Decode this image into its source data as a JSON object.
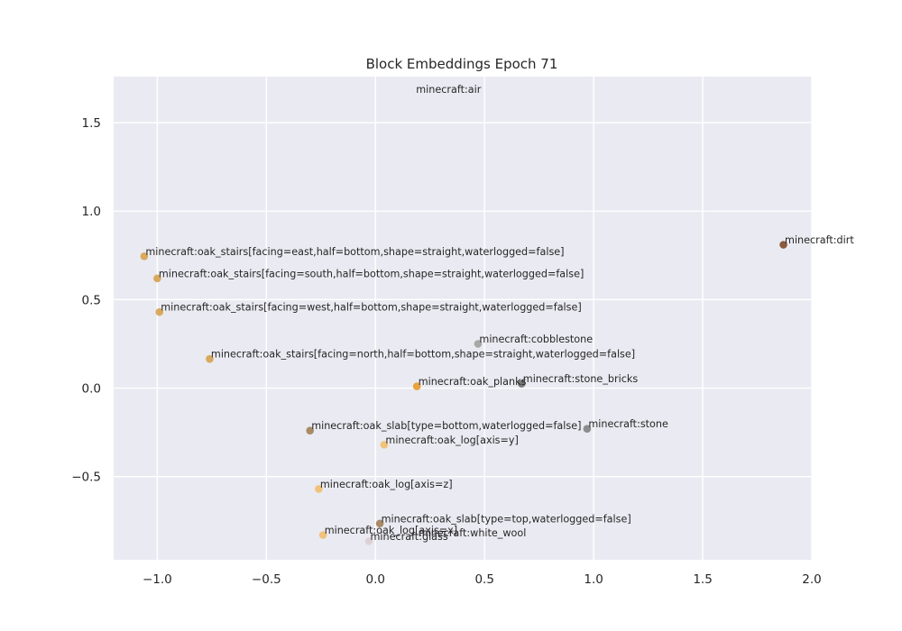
{
  "chart_data": {
    "type": "scatter",
    "title": "Block Embeddings Epoch 71",
    "xlabel": "",
    "ylabel": "",
    "xlim": [
      -1.2,
      2.0
    ],
    "ylim": [
      -0.97,
      1.76
    ],
    "xticks": [
      -1.0,
      -0.5,
      0.0,
      0.5,
      1.0,
      1.5,
      2.0
    ],
    "xtick_labels": [
      "−1.0",
      "−0.5",
      "0.0",
      "0.5",
      "1.0",
      "1.5",
      "2.0"
    ],
    "yticks": [
      -0.5,
      0.0,
      0.5,
      1.0,
      1.5
    ],
    "ytick_labels": [
      "−0.5",
      "0.0",
      "0.5",
      "1.0",
      "1.5"
    ],
    "grid": true,
    "background": "#eaeaf2",
    "points": [
      {
        "label": "minecraft:air",
        "x": 0.18,
        "y": 1.66,
        "color": null
      },
      {
        "label": "minecraft:dirt",
        "x": 1.87,
        "y": 0.81,
        "color": "#8b5a3c"
      },
      {
        "label": "minecraft:oak_stairs[facing=east,half=bottom,shape=straight,waterlogged=false]",
        "x": -1.06,
        "y": 0.745,
        "color": "#d9a95e"
      },
      {
        "label": "minecraft:oak_stairs[facing=south,half=bottom,shape=straight,waterlogged=false]",
        "x": -1.0,
        "y": 0.62,
        "color": "#d9a95e"
      },
      {
        "label": "minecraft:oak_stairs[facing=west,half=bottom,shape=straight,waterlogged=false]",
        "x": -0.99,
        "y": 0.43,
        "color": "#d9a95e"
      },
      {
        "label": "minecraft:cobblestone",
        "x": 0.47,
        "y": 0.25,
        "color": "#a8a8a8"
      },
      {
        "label": "minecraft:oak_stairs[facing=north,half=bottom,shape=straight,waterlogged=false]",
        "x": -0.76,
        "y": 0.165,
        "color": "#d9a95e"
      },
      {
        "label": "minecraft:oak_planks",
        "x": 0.19,
        "y": 0.01,
        "color": "#e8a33d"
      },
      {
        "label": "minecraft:stone_bricks",
        "x": 0.67,
        "y": 0.025,
        "color": "#7a7a7a"
      },
      {
        "label": "minecraft:oak_slab[type=bottom,waterlogged=false]",
        "x": -0.3,
        "y": -0.24,
        "color": "#a88b66"
      },
      {
        "label": "minecraft:stone",
        "x": 0.97,
        "y": -0.23,
        "color": "#8c8c8c"
      },
      {
        "label": "minecraft:oak_log[axis=y]",
        "x": 0.04,
        "y": -0.32,
        "color": "#f0c27a"
      },
      {
        "label": "minecraft:oak_log[axis=z]",
        "x": -0.26,
        "y": -0.57,
        "color": "#f0c27a"
      },
      {
        "label": "minecraft:oak_slab[type=top,waterlogged=false]",
        "x": 0.02,
        "y": -0.765,
        "color": "#a88b66"
      },
      {
        "label": "minecraft:oak_log[axis=x]",
        "x": -0.24,
        "y": -0.83,
        "color": "#f0c27a"
      },
      {
        "label": "minecraft:glass",
        "x": -0.03,
        "y": -0.865,
        "color": "#dcd2d6"
      },
      {
        "label": "minecraft:white_wool",
        "x": 0.19,
        "y": -0.845,
        "color": null
      }
    ]
  }
}
